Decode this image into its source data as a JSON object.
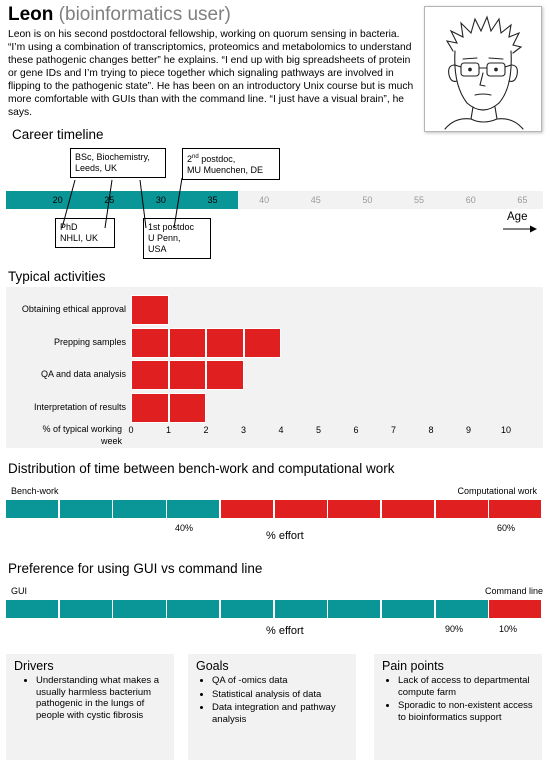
{
  "header": {
    "name": "Leon",
    "role": "(bioinformatics user)",
    "description": "Leon is on his second postdoctoral fellowship, working on quorum sensing in bacteria. “I’m using a combination of transcriptomics, proteomics and metabolomics to understand these pathogenic changes better” he explains. “I end up with big spreadsheets of protein or gene IDs and I’m trying to piece together which signaling pathways are involved in flipping to the pathogenic state”. He has been on an introductory Unix course but is much more comfortable with GUIs than with the command line. “I just have a visual brain”, he says."
  },
  "career": {
    "title": "Career timeline",
    "axis_label": "Age",
    "ticks": [
      "20",
      "25",
      "30",
      "35",
      "40",
      "45",
      "50",
      "55",
      "60",
      "65"
    ],
    "filled_until_age": 35,
    "bar_color": "#0a9696",
    "events_above": [
      {
        "line1": "BSc, Biochemistry,",
        "line2": "Leeds, UK"
      },
      {
        "sup": "nd",
        "line1_pre": "2",
        "line1": " postdoc,",
        "line2": "MU Muenchen, DE"
      }
    ],
    "events_below": [
      {
        "line1": "PhD",
        "line2": "NHLI, UK"
      },
      {
        "line1": "1st postdoc",
        "line2": "U Penn,",
        "line3": "USA"
      }
    ]
  },
  "activities": {
    "title": "Typical activities",
    "axis_caption_line1": "% of typical working",
    "axis_caption_line2": "week",
    "ticks": [
      "0",
      "1",
      "2",
      "3",
      "4",
      "5",
      "6",
      "7",
      "8",
      "9",
      "10"
    ],
    "bar_color": "#e02020",
    "items": [
      {
        "label": "Obtaining ethical approval",
        "value": 1
      },
      {
        "label": "Prepping samples",
        "value": 4
      },
      {
        "label": "QA and data analysis",
        "value": 3
      },
      {
        "label": "Interpretation of results",
        "value": 2
      }
    ]
  },
  "bench_vs_comp": {
    "title": "Distribution of time between bench-work and computational work",
    "left_label": "Bench-work",
    "right_label": "Computational work",
    "left_percent_label": "40%",
    "right_percent_label": "60%",
    "axis_caption": "% effort",
    "left_fraction": 0.4,
    "segments": 10,
    "left_color": "#0a9696",
    "right_color": "#e02020"
  },
  "gui_vs_cli": {
    "title": "Preference for using GUI vs command line",
    "left_label": "GUI",
    "right_label": "Command line",
    "left_percent_label": "90%",
    "right_percent_label": "10%",
    "axis_caption": "% effort",
    "left_fraction": 0.9,
    "segments": 10,
    "left_color": "#0a9696",
    "right_color": "#e02020"
  },
  "drivers": {
    "title": "Drivers",
    "items": [
      "Understanding what makes a usually harmless bacterium pathogenic in the lungs of people with cystic fibrosis"
    ]
  },
  "goals": {
    "title": "Goals",
    "items": [
      "QA of -omics data",
      "Statistical analysis of data",
      "Data integration and pathway analysis"
    ]
  },
  "pain_points": {
    "title": "Pain points",
    "items": [
      "Lack of access to departmental compute farm",
      "Sporadic to non-existent access to bioinformatics support"
    ]
  }
}
